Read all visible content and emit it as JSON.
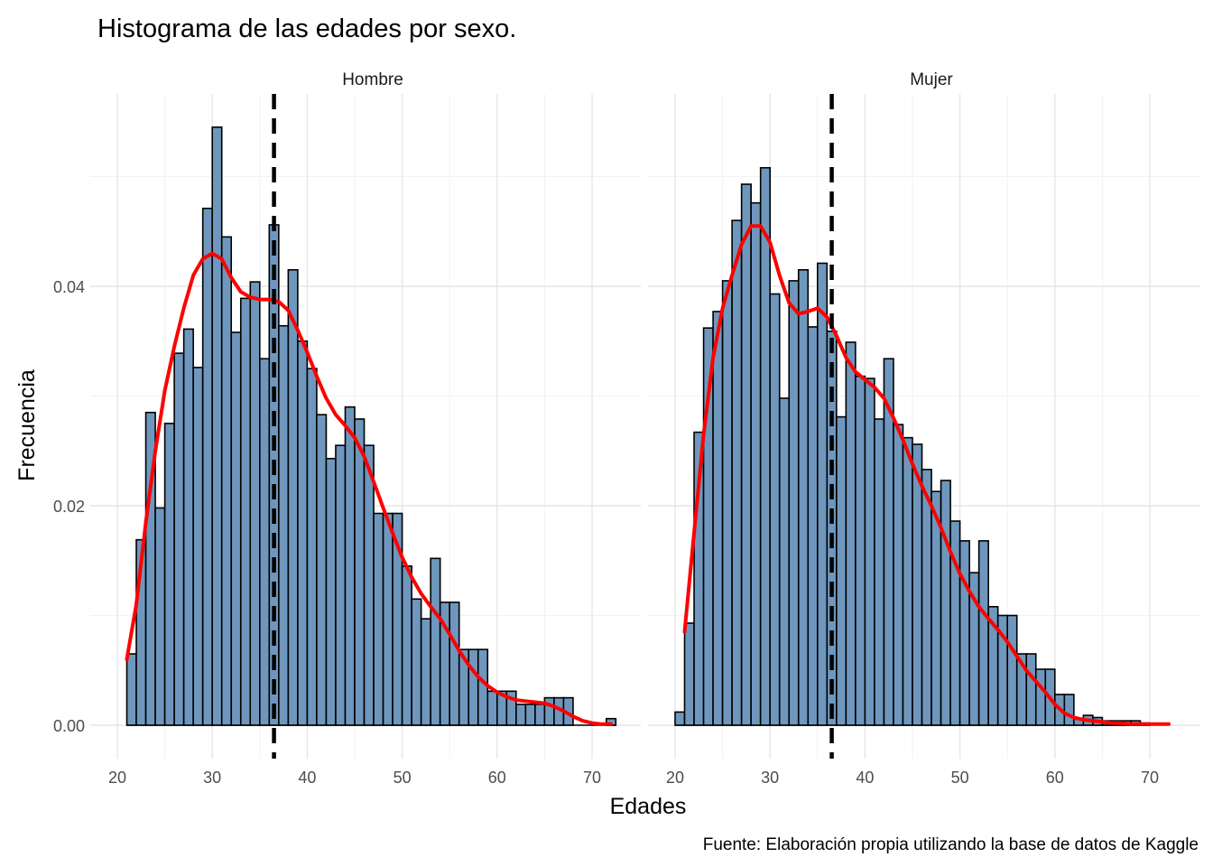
{
  "chart_data": {
    "type": "bar",
    "title": "Histograma de las edades por sexo.",
    "xlabel": "Edades",
    "ylabel": "Frecuencia",
    "caption": "Fuente: Elaboración propia utilizando la base de datos de Kaggle",
    "xlim": [
      20,
      72.5
    ],
    "ylim": [
      0,
      0.055
    ],
    "x_ticks": [
      "20",
      "30",
      "40",
      "50",
      "60",
      "70"
    ],
    "y_ticks": [
      "0.00",
      "0.02",
      "0.04"
    ],
    "grid": true,
    "bar_color": "#6f97bd",
    "density_color": "#ff0000",
    "mean_line_color": "#000000",
    "panels": [
      {
        "name": "Hombre",
        "mean": 36.5,
        "bins": [
          {
            "x": 21.5,
            "y": 0.0065
          },
          {
            "x": 22.5,
            "y": 0.0169
          },
          {
            "x": 23.5,
            "y": 0.0285
          },
          {
            "x": 24.5,
            "y": 0.0198
          },
          {
            "x": 25.5,
            "y": 0.0275
          },
          {
            "x": 26.5,
            "y": 0.0339
          },
          {
            "x": 27.5,
            "y": 0.0361
          },
          {
            "x": 28.5,
            "y": 0.0326
          },
          {
            "x": 29.5,
            "y": 0.0471
          },
          {
            "x": 30.5,
            "y": 0.0545
          },
          {
            "x": 31.5,
            "y": 0.0445
          },
          {
            "x": 32.5,
            "y": 0.0358
          },
          {
            "x": 33.5,
            "y": 0.0389
          },
          {
            "x": 34.5,
            "y": 0.0404
          },
          {
            "x": 35.5,
            "y": 0.0334
          },
          {
            "x": 36.5,
            "y": 0.0456
          },
          {
            "x": 37.5,
            "y": 0.0364
          },
          {
            "x": 38.5,
            "y": 0.0415
          },
          {
            "x": 39.5,
            "y": 0.035
          },
          {
            "x": 40.5,
            "y": 0.0325
          },
          {
            "x": 41.5,
            "y": 0.0283
          },
          {
            "x": 42.5,
            "y": 0.0243
          },
          {
            "x": 43.5,
            "y": 0.0255
          },
          {
            "x": 44.5,
            "y": 0.029
          },
          {
            "x": 45.5,
            "y": 0.0279
          },
          {
            "x": 46.5,
            "y": 0.0255
          },
          {
            "x": 47.5,
            "y": 0.0193
          },
          {
            "x": 48.5,
            "y": 0.0193
          },
          {
            "x": 49.5,
            "y": 0.0193
          },
          {
            "x": 50.5,
            "y": 0.0145
          },
          {
            "x": 51.5,
            "y": 0.0115
          },
          {
            "x": 52.5,
            "y": 0.0097
          },
          {
            "x": 53.5,
            "y": 0.0152
          },
          {
            "x": 54.5,
            "y": 0.0112
          },
          {
            "x": 55.5,
            "y": 0.0112
          },
          {
            "x": 56.5,
            "y": 0.0069
          },
          {
            "x": 57.5,
            "y": 0.0069
          },
          {
            "x": 58.5,
            "y": 0.0069
          },
          {
            "x": 59.5,
            "y": 0.0031
          },
          {
            "x": 60.5,
            "y": 0.0031
          },
          {
            "x": 61.5,
            "y": 0.0031
          },
          {
            "x": 62.5,
            "y": 0.0019
          },
          {
            "x": 63.5,
            "y": 0.0019
          },
          {
            "x": 64.5,
            "y": 0.0019
          },
          {
            "x": 65.5,
            "y": 0.0025
          },
          {
            "x": 66.5,
            "y": 0.0025
          },
          {
            "x": 67.5,
            "y": 0.0025
          },
          {
            "x": 72.0,
            "y": 0.0006
          }
        ],
        "density": [
          {
            "x": 21.0,
            "y": 0.006
          },
          {
            "x": 22.0,
            "y": 0.011
          },
          {
            "x": 23.0,
            "y": 0.0185
          },
          {
            "x": 24.0,
            "y": 0.025
          },
          {
            "x": 25.0,
            "y": 0.0305
          },
          {
            "x": 26.0,
            "y": 0.0345
          },
          {
            "x": 27.0,
            "y": 0.038
          },
          {
            "x": 28.0,
            "y": 0.041
          },
          {
            "x": 29.0,
            "y": 0.0425
          },
          {
            "x": 30.0,
            "y": 0.043
          },
          {
            "x": 31.0,
            "y": 0.0425
          },
          {
            "x": 32.0,
            "y": 0.0408
          },
          {
            "x": 33.0,
            "y": 0.0395
          },
          {
            "x": 34.0,
            "y": 0.039
          },
          {
            "x": 35.0,
            "y": 0.0388
          },
          {
            "x": 36.0,
            "y": 0.0388
          },
          {
            "x": 37.0,
            "y": 0.0386
          },
          {
            "x": 38.0,
            "y": 0.0378
          },
          {
            "x": 39.0,
            "y": 0.036
          },
          {
            "x": 40.0,
            "y": 0.034
          },
          {
            "x": 41.0,
            "y": 0.0318
          },
          {
            "x": 42.0,
            "y": 0.0298
          },
          {
            "x": 43.0,
            "y": 0.0283
          },
          {
            "x": 44.0,
            "y": 0.0273
          },
          {
            "x": 45.0,
            "y": 0.0262
          },
          {
            "x": 46.0,
            "y": 0.0245
          },
          {
            "x": 47.0,
            "y": 0.0222
          },
          {
            "x": 48.0,
            "y": 0.0198
          },
          {
            "x": 49.0,
            "y": 0.0175
          },
          {
            "x": 50.0,
            "y": 0.0153
          },
          {
            "x": 51.0,
            "y": 0.0135
          },
          {
            "x": 52.0,
            "y": 0.012
          },
          {
            "x": 53.0,
            "y": 0.0108
          },
          {
            "x": 54.0,
            "y": 0.0097
          },
          {
            "x": 55.0,
            "y": 0.0083
          },
          {
            "x": 56.0,
            "y": 0.0068
          },
          {
            "x": 57.0,
            "y": 0.0055
          },
          {
            "x": 58.0,
            "y": 0.0044
          },
          {
            "x": 59.0,
            "y": 0.0036
          },
          {
            "x": 60.0,
            "y": 0.003
          },
          {
            "x": 61.0,
            "y": 0.0026
          },
          {
            "x": 62.0,
            "y": 0.0023
          },
          {
            "x": 63.0,
            "y": 0.0022
          },
          {
            "x": 64.0,
            "y": 0.0021
          },
          {
            "x": 65.0,
            "y": 0.002
          },
          {
            "x": 66.0,
            "y": 0.0017
          },
          {
            "x": 67.0,
            "y": 0.0013
          },
          {
            "x": 68.0,
            "y": 0.0008
          },
          {
            "x": 69.0,
            "y": 0.0004
          },
          {
            "x": 70.0,
            "y": 0.0002
          },
          {
            "x": 71.0,
            "y": 0.0001
          },
          {
            "x": 72.0,
            "y": 0.0001
          }
        ]
      },
      {
        "name": "Mujer",
        "mean": 36.5,
        "bins": [
          {
            "x": 20.5,
            "y": 0.0012
          },
          {
            "x": 21.5,
            "y": 0.0093
          },
          {
            "x": 22.5,
            "y": 0.0267
          },
          {
            "x": 23.5,
            "y": 0.0362
          },
          {
            "x": 24.5,
            "y": 0.0377
          },
          {
            "x": 25.5,
            "y": 0.0405
          },
          {
            "x": 26.5,
            "y": 0.046
          },
          {
            "x": 27.5,
            "y": 0.0493
          },
          {
            "x": 28.5,
            "y": 0.0476
          },
          {
            "x": 29.5,
            "y": 0.0508
          },
          {
            "x": 30.5,
            "y": 0.0393
          },
          {
            "x": 31.5,
            "y": 0.0298
          },
          {
            "x": 32.5,
            "y": 0.0405
          },
          {
            "x": 33.5,
            "y": 0.0415
          },
          {
            "x": 34.5,
            "y": 0.0363
          },
          {
            "x": 35.5,
            "y": 0.0421
          },
          {
            "x": 36.5,
            "y": 0.0359
          },
          {
            "x": 37.5,
            "y": 0.0281
          },
          {
            "x": 38.5,
            "y": 0.0349
          },
          {
            "x": 39.5,
            "y": 0.0318
          },
          {
            "x": 40.5,
            "y": 0.0316
          },
          {
            "x": 41.5,
            "y": 0.0279
          },
          {
            "x": 42.5,
            "y": 0.0334
          },
          {
            "x": 43.5,
            "y": 0.0274
          },
          {
            "x": 44.5,
            "y": 0.0262
          },
          {
            "x": 45.5,
            "y": 0.0256
          },
          {
            "x": 46.5,
            "y": 0.0233
          },
          {
            "x": 47.5,
            "y": 0.0213
          },
          {
            "x": 48.5,
            "y": 0.0223
          },
          {
            "x": 49.5,
            "y": 0.0186
          },
          {
            "x": 50.5,
            "y": 0.0168
          },
          {
            "x": 51.5,
            "y": 0.0139
          },
          {
            "x": 52.5,
            "y": 0.0168
          },
          {
            "x": 53.5,
            "y": 0.0108
          },
          {
            "x": 54.5,
            "y": 0.01
          },
          {
            "x": 55.5,
            "y": 0.01
          },
          {
            "x": 56.5,
            "y": 0.0065
          },
          {
            "x": 57.5,
            "y": 0.0065
          },
          {
            "x": 58.5,
            "y": 0.0051
          },
          {
            "x": 59.5,
            "y": 0.0051
          },
          {
            "x": 60.5,
            "y": 0.0028
          },
          {
            "x": 61.5,
            "y": 0.0028
          },
          {
            "x": 62.5,
            "y": 0.0006
          },
          {
            "x": 63.5,
            "y": 0.0009
          },
          {
            "x": 64.5,
            "y": 0.0007
          },
          {
            "x": 65.5,
            "y": 0.0004
          },
          {
            "x": 66.5,
            "y": 0.0004
          },
          {
            "x": 67.5,
            "y": 0.0004
          },
          {
            "x": 68.5,
            "y": 0.0004
          },
          {
            "x": 69.5,
            "y": 0.0002
          }
        ],
        "density": [
          {
            "x": 21.0,
            "y": 0.0085
          },
          {
            "x": 22.0,
            "y": 0.0175
          },
          {
            "x": 23.0,
            "y": 0.0265
          },
          {
            "x": 24.0,
            "y": 0.0335
          },
          {
            "x": 25.0,
            "y": 0.038
          },
          {
            "x": 26.0,
            "y": 0.041
          },
          {
            "x": 27.0,
            "y": 0.0438
          },
          {
            "x": 28.0,
            "y": 0.0455
          },
          {
            "x": 29.0,
            "y": 0.0455
          },
          {
            "x": 30.0,
            "y": 0.044
          },
          {
            "x": 31.0,
            "y": 0.041
          },
          {
            "x": 32.0,
            "y": 0.0385
          },
          {
            "x": 33.0,
            "y": 0.0375
          },
          {
            "x": 34.0,
            "y": 0.0377
          },
          {
            "x": 35.0,
            "y": 0.038
          },
          {
            "x": 36.0,
            "y": 0.0372
          },
          {
            "x": 37.0,
            "y": 0.0355
          },
          {
            "x": 38.0,
            "y": 0.0335
          },
          {
            "x": 39.0,
            "y": 0.0322
          },
          {
            "x": 40.0,
            "y": 0.0315
          },
          {
            "x": 41.0,
            "y": 0.0308
          },
          {
            "x": 42.0,
            "y": 0.0298
          },
          {
            "x": 43.0,
            "y": 0.028
          },
          {
            "x": 44.0,
            "y": 0.026
          },
          {
            "x": 45.0,
            "y": 0.0238
          },
          {
            "x": 46.0,
            "y": 0.0218
          },
          {
            "x": 47.0,
            "y": 0.02
          },
          {
            "x": 48.0,
            "y": 0.018
          },
          {
            "x": 49.0,
            "y": 0.0158
          },
          {
            "x": 50.0,
            "y": 0.0138
          },
          {
            "x": 51.0,
            "y": 0.0122
          },
          {
            "x": 52.0,
            "y": 0.0108
          },
          {
            "x": 53.0,
            "y": 0.0097
          },
          {
            "x": 54.0,
            "y": 0.0087
          },
          {
            "x": 55.0,
            "y": 0.0076
          },
          {
            "x": 56.0,
            "y": 0.0063
          },
          {
            "x": 57.0,
            "y": 0.005
          },
          {
            "x": 58.0,
            "y": 0.004
          },
          {
            "x": 59.0,
            "y": 0.003
          },
          {
            "x": 60.0,
            "y": 0.0019
          },
          {
            "x": 61.0,
            "y": 0.0011
          },
          {
            "x": 62.0,
            "y": 0.0007
          },
          {
            "x": 63.0,
            "y": 0.0005
          },
          {
            "x": 64.0,
            "y": 0.0004
          },
          {
            "x": 65.0,
            "y": 0.0003
          },
          {
            "x": 66.0,
            "y": 0.0002
          },
          {
            "x": 67.0,
            "y": 0.0002
          },
          {
            "x": 68.0,
            "y": 0.0001
          },
          {
            "x": 69.0,
            "y": 0.0001
          },
          {
            "x": 70.0,
            "y": 0.0001
          },
          {
            "x": 71.0,
            "y": 0.0001
          },
          {
            "x": 72.0,
            "y": 0.0001
          }
        ]
      }
    ]
  }
}
